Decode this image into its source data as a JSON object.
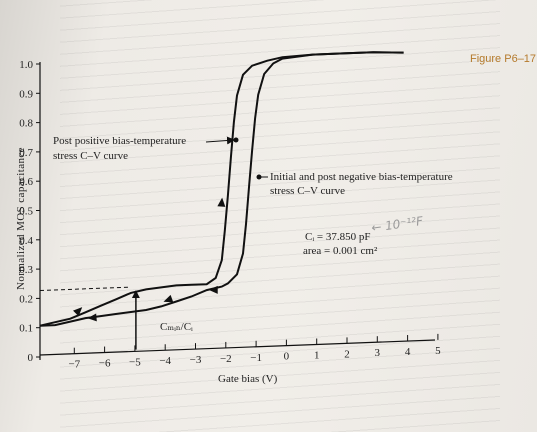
{
  "figure_label": "Figure P6–17",
  "chart_data": {
    "type": "line",
    "title": "",
    "xlabel": "Gate bias (V)",
    "ylabel": "Normalized MOS capacitance",
    "xlim": [
      -8,
      5
    ],
    "ylim": [
      0,
      1.0
    ],
    "x_ticks": [
      "−7",
      "−6",
      "−5",
      "−4",
      "−3",
      "−2",
      "−1",
      "0",
      "1",
      "2",
      "3",
      "4",
      "5"
    ],
    "x_tick_values": [
      -7,
      -6,
      -5,
      -4,
      -3,
      -2,
      -1,
      0,
      1,
      2,
      3,
      4,
      5
    ],
    "y_ticks": [
      "0",
      "0.1",
      "0.2",
      "0.3",
      "0.4",
      "0.5",
      "0.6",
      "0.7",
      "0.8",
      "0.9",
      "1.0"
    ],
    "y_tick_values": [
      0,
      0.1,
      0.2,
      0.3,
      0.4,
      0.5,
      0.6,
      0.7,
      0.8,
      0.9,
      1.0
    ],
    "grid": false,
    "series": [
      {
        "x": [
          -8,
          -7.5,
          -7,
          -6.5,
          -6,
          -5.5,
          -5,
          -4.5,
          -4,
          -3.5,
          -3,
          -2.5,
          -2.2,
          -2.0,
          -1.9,
          -1.8,
          -1.7,
          -1.6,
          -1.5,
          -1.3,
          -1.0,
          -0.5,
          0,
          1,
          2,
          3,
          4
        ],
        "values": [
          0.1,
          0.11,
          0.12,
          0.14,
          0.16,
          0.18,
          0.2,
          0.21,
          0.215,
          0.22,
          0.22,
          0.22,
          0.24,
          0.3,
          0.4,
          0.52,
          0.65,
          0.77,
          0.86,
          0.93,
          0.96,
          0.975,
          0.985,
          0.99,
          0.99,
          0.99,
          0.985
        ]
      },
      {
        "x": [
          -8,
          -7.5,
          -7,
          -6.5,
          -6,
          -5.5,
          -5,
          -4.5,
          -4,
          -3.5,
          -3,
          -2.5,
          -2,
          -1.8,
          -1.5,
          -1.3,
          -1.2,
          -1.1,
          -1.0,
          -0.9,
          -0.8,
          -0.6,
          -0.3,
          0,
          1,
          2,
          3,
          4
        ],
        "values": [
          0.1,
          0.1,
          0.11,
          0.12,
          0.125,
          0.13,
          0.135,
          0.14,
          0.15,
          0.165,
          0.18,
          0.2,
          0.21,
          0.22,
          0.25,
          0.32,
          0.42,
          0.55,
          0.67,
          0.78,
          0.86,
          0.93,
          0.965,
          0.98,
          0.99,
          0.99,
          0.99,
          0.985
        ]
      }
    ],
    "annotations": {
      "left_curve": [
        "Post positive bias-temperature",
        "stress C–V curve"
      ],
      "right_curve": [
        "Initial and post negative bias-temperature",
        "stress C–V curve"
      ],
      "ci": "Cᵢ = 37.850 pF",
      "area": "area = 0.001 cm²",
      "cmin": "Cₘᵢₙ/Cᵢ",
      "cmin_marker": {
        "x": -5,
        "y": 0.22
      },
      "dashed_level": 0.22,
      "handwriting": "← 10⁻¹²F"
    }
  }
}
